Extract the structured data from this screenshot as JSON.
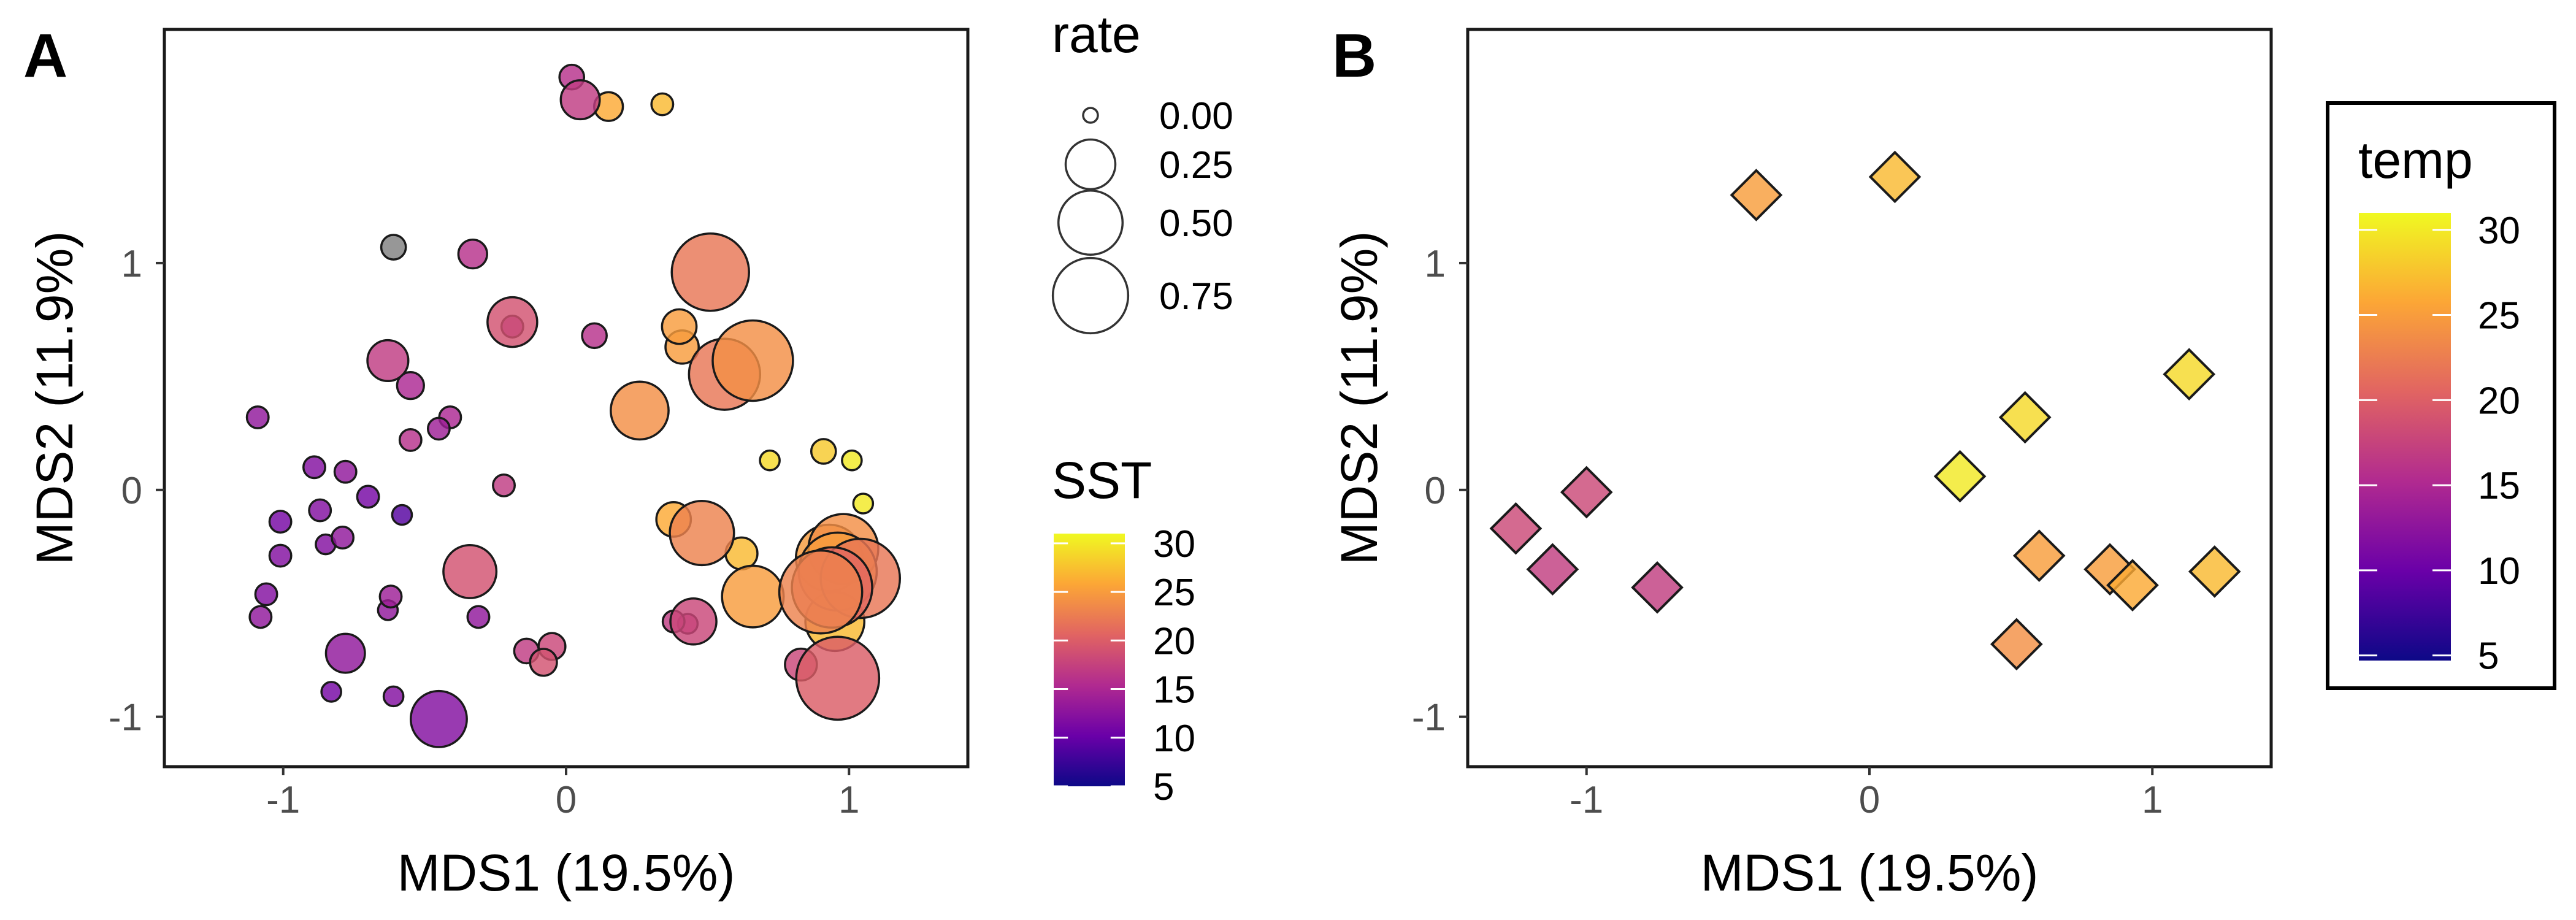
{
  "colors": {
    "point_outline": "#1a1a1a",
    "frame": "#1a1a1a",
    "na_point": "#808080",
    "scale_stops": [
      "#0d0887",
      "#6a00a8",
      "#b12a90",
      "#e16462",
      "#fca636",
      "#f0f921"
    ]
  },
  "chart_data": [
    {
      "panel": "A",
      "type": "scatter",
      "xlabel": "MDS1 (19.5%)",
      "ylabel": "MDS2 (11.9%)",
      "xlim": [
        -1.42,
        1.42
      ],
      "ylim": [
        -1.22,
        2.03
      ],
      "xticks": [
        -1,
        0,
        1
      ],
      "yticks": [
        -1,
        0,
        1
      ],
      "grid": false,
      "color_legend": {
        "title": "SST",
        "range": [
          5,
          31
        ],
        "ticks": [
          5,
          10,
          15,
          20,
          25,
          30
        ]
      },
      "size_legend": {
        "title": "rate",
        "labels": [
          "0.00",
          "0.25",
          "0.50",
          "0.75"
        ],
        "values": [
          0.0,
          0.25,
          0.5,
          0.75
        ]
      },
      "points": [
        {
          "x": 0.02,
          "y": 1.82,
          "sst": 16,
          "rate": 0.02
        },
        {
          "x": 0.05,
          "y": 1.72,
          "sst": 17,
          "rate": 0.12
        },
        {
          "x": 0.15,
          "y": 1.69,
          "sst": 26,
          "rate": 0.04
        },
        {
          "x": 0.34,
          "y": 1.7,
          "sst": 27,
          "rate": 0.01
        },
        {
          "x": -0.61,
          "y": 1.07,
          "sst": null,
          "rate": 0.02
        },
        {
          "x": -0.33,
          "y": 1.04,
          "sst": 16,
          "rate": 0.04
        },
        {
          "x": -0.19,
          "y": 0.74,
          "sst": 19,
          "rate": 0.25
        },
        {
          "x": -0.19,
          "y": 0.72,
          "sst": 14,
          "rate": 0.01
        },
        {
          "x": 0.1,
          "y": 0.68,
          "sst": 16,
          "rate": 0.02
        },
        {
          "x": -0.63,
          "y": 0.57,
          "sst": 17,
          "rate": 0.14
        },
        {
          "x": -0.55,
          "y": 0.46,
          "sst": 15,
          "rate": 0.03
        },
        {
          "x": -1.09,
          "y": 0.32,
          "sst": 13,
          "rate": 0.01
        },
        {
          "x": -0.41,
          "y": 0.32,
          "sst": 15,
          "rate": 0.01
        },
        {
          "x": -0.45,
          "y": 0.27,
          "sst": 14,
          "rate": 0.01
        },
        {
          "x": -0.55,
          "y": 0.22,
          "sst": 16,
          "rate": 0.01
        },
        {
          "x": -0.89,
          "y": 0.1,
          "sst": 12,
          "rate": 0.01
        },
        {
          "x": -0.78,
          "y": 0.08,
          "sst": 13,
          "rate": 0.01
        },
        {
          "x": -0.22,
          "y": 0.02,
          "sst": 17,
          "rate": 0.01
        },
        {
          "x": -0.7,
          "y": -0.03,
          "sst": 11,
          "rate": 0.01
        },
        {
          "x": -0.87,
          "y": -0.09,
          "sst": 12,
          "rate": 0.01
        },
        {
          "x": -1.01,
          "y": -0.14,
          "sst": 11,
          "rate": 0.01
        },
        {
          "x": -0.58,
          "y": -0.11,
          "sst": 9,
          "rate": 0.005
        },
        {
          "x": -0.79,
          "y": -0.21,
          "sst": 13,
          "rate": 0.01
        },
        {
          "x": -0.85,
          "y": -0.24,
          "sst": 12,
          "rate": 0.005
        },
        {
          "x": -1.01,
          "y": -0.29,
          "sst": 12,
          "rate": 0.01
        },
        {
          "x": -0.34,
          "y": -0.36,
          "sst": 19,
          "rate": 0.3
        },
        {
          "x": -1.06,
          "y": -0.46,
          "sst": 12,
          "rate": 0.01
        },
        {
          "x": -0.62,
          "y": -0.47,
          "sst": 14,
          "rate": 0.01
        },
        {
          "x": -0.63,
          "y": -0.53,
          "sst": 13,
          "rate": 0.005
        },
        {
          "x": -1.08,
          "y": -0.56,
          "sst": 13,
          "rate": 0.01
        },
        {
          "x": -0.31,
          "y": -0.56,
          "sst": 13,
          "rate": 0.01
        },
        {
          "x": -0.78,
          "y": -0.72,
          "sst": 13,
          "rate": 0.12
        },
        {
          "x": -0.14,
          "y": -0.71,
          "sst": 17,
          "rate": 0.02
        },
        {
          "x": -0.05,
          "y": -0.69,
          "sst": 18,
          "rate": 0.03
        },
        {
          "x": -0.08,
          "y": -0.76,
          "sst": 19,
          "rate": 0.03
        },
        {
          "x": -0.83,
          "y": -0.89,
          "sst": 11,
          "rate": 0.005
        },
        {
          "x": -0.61,
          "y": -0.91,
          "sst": 12,
          "rate": 0.005
        },
        {
          "x": -0.45,
          "y": -1.01,
          "sst": 12,
          "rate": 0.35
        },
        {
          "x": 0.51,
          "y": 0.96,
          "sst": 22,
          "rate": 0.8
        },
        {
          "x": 0.4,
          "y": 0.72,
          "sst": 25,
          "rate": 0.08
        },
        {
          "x": 0.41,
          "y": 0.63,
          "sst": 25,
          "rate": 0.07
        },
        {
          "x": 0.66,
          "y": 0.57,
          "sst": 24,
          "rate": 0.88
        },
        {
          "x": 0.56,
          "y": 0.51,
          "sst": 22,
          "rate": 0.65
        },
        {
          "x": 0.26,
          "y": 0.35,
          "sst": 24,
          "rate": 0.38
        },
        {
          "x": 0.72,
          "y": 0.13,
          "sst": 29,
          "rate": 0.005
        },
        {
          "x": 0.91,
          "y": 0.17,
          "sst": 28,
          "rate": 0.02
        },
        {
          "x": 1.01,
          "y": 0.13,
          "sst": 30,
          "rate": 0.005
        },
        {
          "x": 1.05,
          "y": -0.06,
          "sst": 30,
          "rate": 0.005
        },
        {
          "x": 0.38,
          "y": -0.13,
          "sst": 26,
          "rate": 0.08
        },
        {
          "x": 0.48,
          "y": -0.19,
          "sst": 23,
          "rate": 0.5
        },
        {
          "x": 0.62,
          "y": -0.28,
          "sst": 27,
          "rate": 0.06
        },
        {
          "x": 0.98,
          "y": -0.26,
          "sst": 24,
          "rate": 0.62
        },
        {
          "x": 0.96,
          "y": -0.36,
          "sst": 25,
          "rate": 0.82
        },
        {
          "x": 1.04,
          "y": -0.39,
          "sst": 22,
          "rate": 0.85
        },
        {
          "x": 0.9,
          "y": -0.45,
          "sst": 23,
          "rate": 0.95
        },
        {
          "x": 0.94,
          "y": -0.43,
          "sst": 21,
          "rate": 0.88
        },
        {
          "x": 0.93,
          "y": -0.3,
          "sst": 25,
          "rate": 0.55
        },
        {
          "x": 0.66,
          "y": -0.47,
          "sst": 25,
          "rate": 0.45
        },
        {
          "x": 0.95,
          "y": -0.58,
          "sst": 27,
          "rate": 0.4
        },
        {
          "x": 0.45,
          "y": -0.58,
          "sst": 18,
          "rate": 0.2
        },
        {
          "x": 0.38,
          "y": -0.58,
          "sst": 17,
          "rate": 0.01
        },
        {
          "x": 0.43,
          "y": -0.59,
          "sst": 17,
          "rate": 0.005
        },
        {
          "x": 0.83,
          "y": -0.77,
          "sst": 18,
          "rate": 0.06
        },
        {
          "x": 0.96,
          "y": -0.83,
          "sst": 20,
          "rate": 0.95
        }
      ]
    },
    {
      "panel": "B",
      "type": "scatter",
      "xlabel": "MDS1 (19.5%)",
      "ylabel": "MDS2 (11.9%)",
      "xlim": [
        -1.42,
        1.42
      ],
      "ylim": [
        -1.22,
        2.03
      ],
      "xticks": [
        -1,
        0,
        1
      ],
      "yticks": [
        -1,
        0,
        1
      ],
      "grid": false,
      "color_legend": {
        "title": "temp",
        "range": [
          4.7,
          31
        ],
        "ticks": [
          5,
          10,
          15,
          20,
          25,
          30
        ]
      },
      "points": [
        {
          "x": -0.4,
          "y": 1.3,
          "temp": 25
        },
        {
          "x": 0.09,
          "y": 1.38,
          "temp": 27
        },
        {
          "x": 1.13,
          "y": 0.51,
          "temp": 29
        },
        {
          "x": 0.55,
          "y": 0.32,
          "temp": 29
        },
        {
          "x": 0.32,
          "y": 0.06,
          "temp": 30
        },
        {
          "x": -1.0,
          "y": -0.01,
          "temp": 18
        },
        {
          "x": -1.25,
          "y": -0.17,
          "temp": 18
        },
        {
          "x": -1.12,
          "y": -0.35,
          "temp": 17
        },
        {
          "x": -0.75,
          "y": -0.43,
          "temp": 17
        },
        {
          "x": 0.6,
          "y": -0.29,
          "temp": 25
        },
        {
          "x": 0.85,
          "y": -0.35,
          "temp": 25
        },
        {
          "x": 0.93,
          "y": -0.42,
          "temp": 26
        },
        {
          "x": 1.22,
          "y": -0.36,
          "temp": 27
        },
        {
          "x": 0.52,
          "y": -0.68,
          "temp": 24
        }
      ]
    }
  ],
  "panel_tags": [
    "A",
    "B"
  ],
  "tick_labels": {
    "x": [
      "-1",
      "0",
      "1"
    ],
    "y": [
      "-1",
      "0",
      "1"
    ]
  },
  "legends": {
    "rate_title": "rate",
    "rate_labels": [
      "0.00",
      "0.25",
      "0.50",
      "0.75"
    ],
    "sst_title": "SST",
    "sst_labels": [
      "5",
      "10",
      "15",
      "20",
      "25",
      "30"
    ],
    "temp_title": "temp",
    "temp_labels": [
      "5",
      "10",
      "15",
      "20",
      "25",
      "30"
    ]
  }
}
